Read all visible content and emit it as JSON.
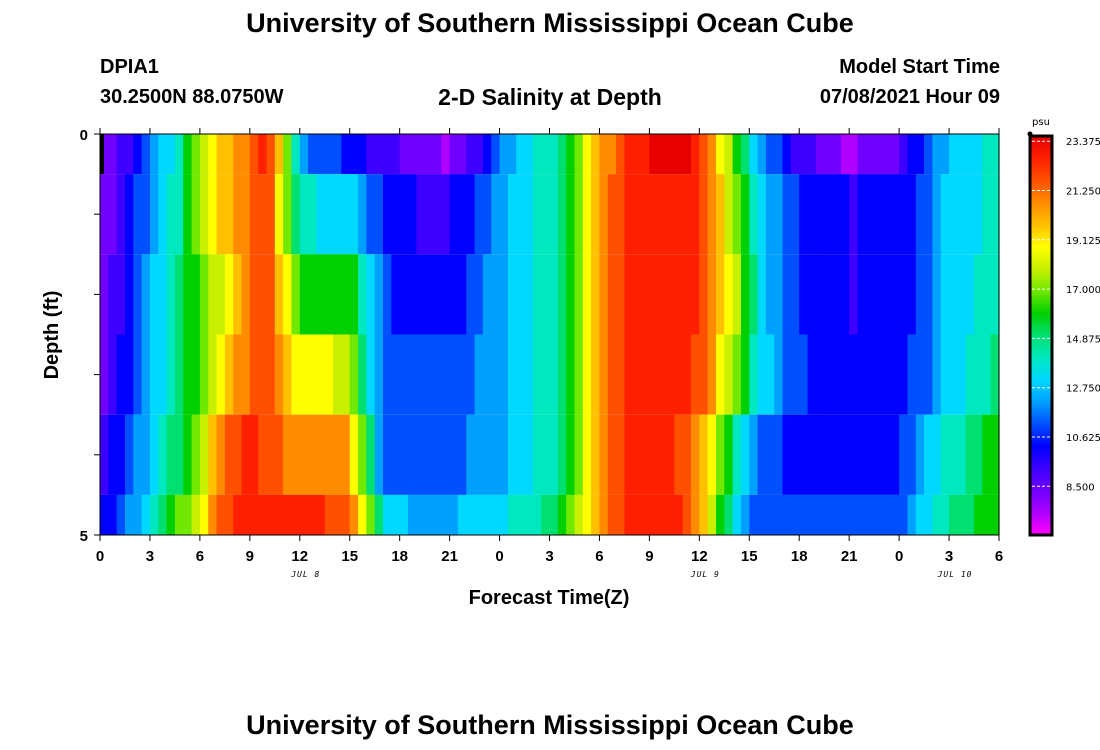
{
  "header": {
    "title_top": "University of Southern Mississippi Ocean Cube",
    "title_bottom": "University of Southern Mississippi Ocean Cube",
    "station": "DPIA1",
    "coords": "30.2500N  88.0750W",
    "plot_title": "2-D Salinity at Depth",
    "model_label": "Model Start Time",
    "model_time": "07/08/2021 Hour 09"
  },
  "colors": {
    "scale": [
      "#ff00ff",
      "#b000ff",
      "#7000ff",
      "#3d00ff",
      "#0000ff",
      "#0050ff",
      "#00a0ff",
      "#00d8ff",
      "#00e8c0",
      "#00e070",
      "#00d000",
      "#70e800",
      "#c8f000",
      "#ffff00",
      "#ffc000",
      "#ff8c00",
      "#ff5000",
      "#ff2000",
      "#e80000"
    ],
    "frame": "#000000",
    "grid": "#ffffff"
  },
  "chart_data": {
    "type": "heatmap",
    "title": "2-D Salinity at Depth",
    "xlabel": "Forecast Time(Z)",
    "ylabel": "Depth (ft)",
    "x_ticks": [
      "0",
      "3",
      "6",
      "9",
      "12",
      "15",
      "18",
      "21",
      "0",
      "3",
      "6",
      "9",
      "12",
      "15",
      "18",
      "21",
      "0",
      "3",
      "6"
    ],
    "x_range_hours": [
      0,
      54
    ],
    "y_ticks": [
      "0",
      "5"
    ],
    "y_range": [
      0,
      5
    ],
    "date_labels": [
      {
        "text": "JUL 8",
        "hour": 12
      },
      {
        "text": "JUL 9",
        "hour": 36
      },
      {
        "text": "JUL 10",
        "hour": 51
      }
    ],
    "colorbar": {
      "unit": "psu",
      "ticks": [
        "23.375",
        "21.250",
        "19.125",
        "17.000",
        "14.875",
        "12.750",
        "10.625",
        "8.500"
      ],
      "tick_values": [
        23.375,
        21.25,
        19.125,
        17.0,
        14.875,
        12.75,
        10.625,
        8.5
      ],
      "range": [
        6.4,
        23.6
      ]
    },
    "depth_bands": [
      0,
      0.5,
      1.5,
      2.5,
      3.5,
      4.5,
      5
    ],
    "salinity_anchors": [
      [
        [
          0,
          8
        ],
        [
          1.5,
          9.5
        ],
        [
          3,
          11.5
        ],
        [
          4.5,
          14
        ],
        [
          6,
          17
        ],
        [
          7.5,
          19.5
        ],
        [
          9,
          21
        ],
        [
          10,
          22.5
        ],
        [
          11,
          19
        ],
        [
          12,
          12
        ],
        [
          15,
          10.6
        ],
        [
          18,
          9
        ],
        [
          21,
          8
        ],
        [
          22.5,
          9.5
        ],
        [
          24,
          12
        ],
        [
          26,
          13.5
        ],
        [
          28,
          15
        ],
        [
          29.5,
          19
        ],
        [
          31,
          21
        ],
        [
          32,
          22.5
        ],
        [
          35,
          23
        ],
        [
          36,
          22.5
        ],
        [
          36.5,
          21
        ],
        [
          37,
          19
        ],
        [
          38,
          17
        ],
        [
          39,
          14
        ],
        [
          40,
          12
        ],
        [
          42,
          9.5
        ],
        [
          45,
          8
        ],
        [
          48,
          9
        ],
        [
          49,
          10.6
        ],
        [
          50,
          11.5
        ],
        [
          51,
          13
        ],
        [
          54,
          14
        ]
      ],
      [
        [
          0,
          8
        ],
        [
          1.5,
          10
        ],
        [
          3,
          12
        ],
        [
          4.5,
          14
        ],
        [
          6,
          17
        ],
        [
          7.5,
          19.5
        ],
        [
          9,
          21
        ],
        [
          10,
          22
        ],
        [
          11,
          18
        ],
        [
          12,
          14
        ],
        [
          15,
          13
        ],
        [
          16,
          12
        ],
        [
          17,
          10.8
        ],
        [
          19,
          10
        ],
        [
          21,
          10
        ],
        [
          22.5,
          11
        ],
        [
          24,
          12.5
        ],
        [
          26,
          13.5
        ],
        [
          28,
          15
        ],
        [
          29.5,
          19
        ],
        [
          31,
          21.5
        ],
        [
          33,
          22.5
        ],
        [
          35,
          22.5
        ],
        [
          36,
          22
        ],
        [
          37,
          20
        ],
        [
          38,
          17
        ],
        [
          39,
          15
        ],
        [
          40,
          13
        ],
        [
          42,
          10.8
        ],
        [
          45,
          10
        ],
        [
          48,
          10.2
        ],
        [
          49,
          10.8
        ],
        [
          50,
          12
        ],
        [
          51,
          13
        ],
        [
          54,
          14
        ]
      ],
      [
        [
          0,
          8.2
        ],
        [
          1.5,
          10.3
        ],
        [
          3,
          12.5
        ],
        [
          4.5,
          14.5
        ],
        [
          6,
          16.5
        ],
        [
          7.5,
          18.5
        ],
        [
          9,
          21
        ],
        [
          10,
          22
        ],
        [
          11,
          19
        ],
        [
          12,
          16
        ],
        [
          15,
          16
        ],
        [
          16,
          14
        ],
        [
          17,
          11.2
        ],
        [
          19,
          10.4
        ],
        [
          21,
          10.2
        ],
        [
          22.5,
          11.5
        ],
        [
          24,
          12.5
        ],
        [
          26,
          13.5
        ],
        [
          28,
          15
        ],
        [
          29.5,
          19
        ],
        [
          31,
          21.5
        ],
        [
          33,
          22.5
        ],
        [
          35,
          22.5
        ],
        [
          36,
          22
        ],
        [
          37,
          20
        ],
        [
          38,
          18
        ],
        [
          39,
          15.5
        ],
        [
          40,
          13
        ],
        [
          42,
          10.8
        ],
        [
          45,
          10
        ],
        [
          48,
          10.2
        ],
        [
          49,
          11
        ],
        [
          50,
          12
        ],
        [
          51,
          13
        ],
        [
          54,
          14.5
        ]
      ],
      [
        [
          0,
          8.5
        ],
        [
          1.5,
          10.5
        ],
        [
          3,
          12.5
        ],
        [
          4.5,
          14.5
        ],
        [
          6,
          16.5
        ],
        [
          7.5,
          19.5
        ],
        [
          9,
          21
        ],
        [
          10,
          21.5
        ],
        [
          11,
          20
        ],
        [
          12,
          18.5
        ],
        [
          15,
          18
        ],
        [
          16,
          14
        ],
        [
          17,
          11.2
        ],
        [
          19,
          11
        ],
        [
          21,
          11
        ],
        [
          22.5,
          11.8
        ],
        [
          24,
          12.5
        ],
        [
          26,
          13.5
        ],
        [
          28,
          15
        ],
        [
          29.5,
          19
        ],
        [
          31,
          21.5
        ],
        [
          33,
          22.5
        ],
        [
          35,
          22.5
        ],
        [
          36,
          21.5
        ],
        [
          37,
          19.5
        ],
        [
          38,
          17
        ],
        [
          39,
          15
        ],
        [
          40,
          13
        ],
        [
          42,
          11
        ],
        [
          45,
          10.6
        ],
        [
          48,
          10.6
        ],
        [
          49,
          11.2
        ],
        [
          50,
          12
        ],
        [
          51,
          13
        ],
        [
          54,
          15
        ]
      ],
      [
        [
          0,
          9.5
        ],
        [
          1.5,
          11
        ],
        [
          3,
          13
        ],
        [
          4.5,
          15
        ],
        [
          6,
          17.5
        ],
        [
          7.5,
          21
        ],
        [
          9,
          22
        ],
        [
          12,
          20.5
        ],
        [
          15,
          20
        ],
        [
          16,
          16
        ],
        [
          17,
          11.5
        ],
        [
          19,
          11.2
        ],
        [
          21,
          11.5
        ],
        [
          22.5,
          12
        ],
        [
          24,
          12.5
        ],
        [
          26,
          13.5
        ],
        [
          28,
          15
        ],
        [
          29.5,
          19.5
        ],
        [
          31,
          21.5
        ],
        [
          33,
          22.5
        ],
        [
          35,
          21.5
        ],
        [
          36,
          20.5
        ],
        [
          37,
          18
        ],
        [
          38,
          15
        ],
        [
          39,
          12.5
        ],
        [
          40,
          11.2
        ],
        [
          42,
          10.6
        ],
        [
          45,
          10.6
        ],
        [
          48,
          10.8
        ],
        [
          49,
          12
        ],
        [
          50,
          13
        ],
        [
          51,
          14
        ],
        [
          54,
          16
        ]
      ],
      [
        [
          0,
          10
        ],
        [
          1.5,
          11.5
        ],
        [
          3,
          13.5
        ],
        [
          4.5,
          16
        ],
        [
          6,
          18.5
        ],
        [
          7.5,
          21.5
        ],
        [
          9,
          22.5
        ],
        [
          12,
          22
        ],
        [
          15,
          21.5
        ],
        [
          16,
          18
        ],
        [
          17,
          13.5
        ],
        [
          19,
          12.5
        ],
        [
          21,
          12.5
        ],
        [
          22.5,
          13
        ],
        [
          24,
          13.5
        ],
        [
          26,
          14
        ],
        [
          28,
          16
        ],
        [
          29.5,
          19.5
        ],
        [
          31,
          21.5
        ],
        [
          33,
          22.5
        ],
        [
          35,
          22
        ],
        [
          36,
          20
        ],
        [
          37,
          17
        ],
        [
          38,
          14
        ],
        [
          39,
          12
        ],
        [
          40,
          11.2
        ],
        [
          42,
          11
        ],
        [
          45,
          11
        ],
        [
          48,
          11.5
        ],
        [
          49,
          12.5
        ],
        [
          50,
          13.5
        ],
        [
          51,
          14.5
        ],
        [
          54,
          16.5
        ]
      ]
    ]
  }
}
